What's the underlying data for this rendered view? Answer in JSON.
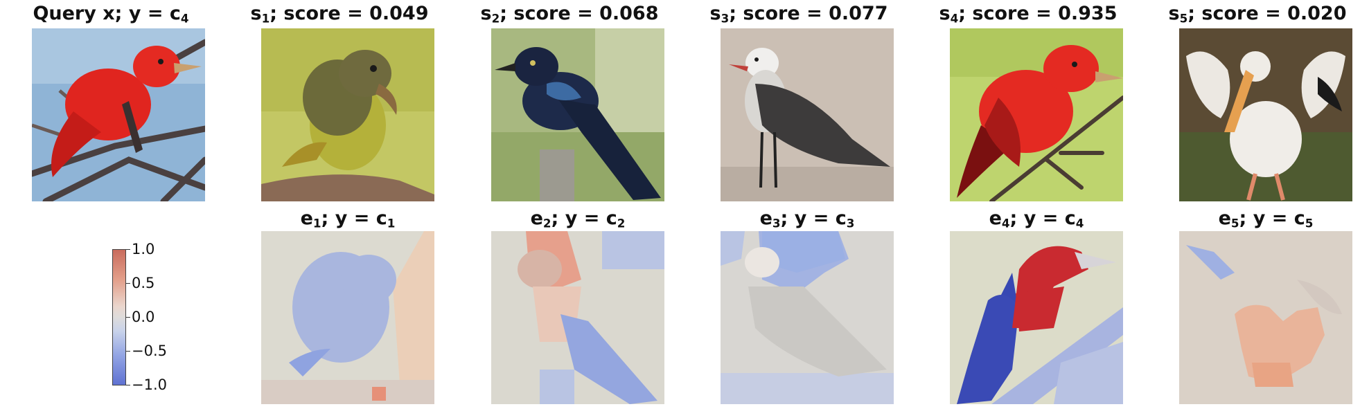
{
  "query": {
    "title": {
      "main": "Query x; y = c",
      "sub": "4"
    }
  },
  "samples": [
    {
      "title": {
        "pre": "s",
        "sub": "1",
        "post": "; score = 0.049"
      }
    },
    {
      "title": {
        "pre": "s",
        "sub": "2",
        "post": "; score = 0.068"
      }
    },
    {
      "title": {
        "pre": "s",
        "sub": "3",
        "post": "; score = 0.077"
      }
    },
    {
      "title": {
        "pre": "s",
        "sub": "4",
        "post": "; score = 0.935"
      }
    },
    {
      "title": {
        "pre": "s",
        "sub": "5",
        "post": "; score = 0.020"
      }
    }
  ],
  "explanations": [
    {
      "title": {
        "pre": "e",
        "sub": "1",
        "mid": "; y = c",
        "sub2": "1"
      }
    },
    {
      "title": {
        "pre": "e",
        "sub": "2",
        "mid": "; y = c",
        "sub2": "2"
      }
    },
    {
      "title": {
        "pre": "e",
        "sub": "3",
        "mid": "; y = c",
        "sub2": "3"
      }
    },
    {
      "title": {
        "pre": "e",
        "sub": "4",
        "mid": "; y = c",
        "sub2": "4"
      }
    },
    {
      "title": {
        "pre": "e",
        "sub": "5",
        "mid": "; y = c",
        "sub2": "5"
      }
    }
  ],
  "colorbar": {
    "ticks": [
      "1.0",
      "0.5",
      "0.0",
      "−0.5",
      "−1.0"
    ],
    "colors": {
      "high": "#c96c5d",
      "mid": "#dedcdb",
      "low": "#5f72d2"
    }
  },
  "colors": {
    "positive": "#c0252b",
    "negative": "#3848b0",
    "neutral": "#dcd9d0"
  }
}
